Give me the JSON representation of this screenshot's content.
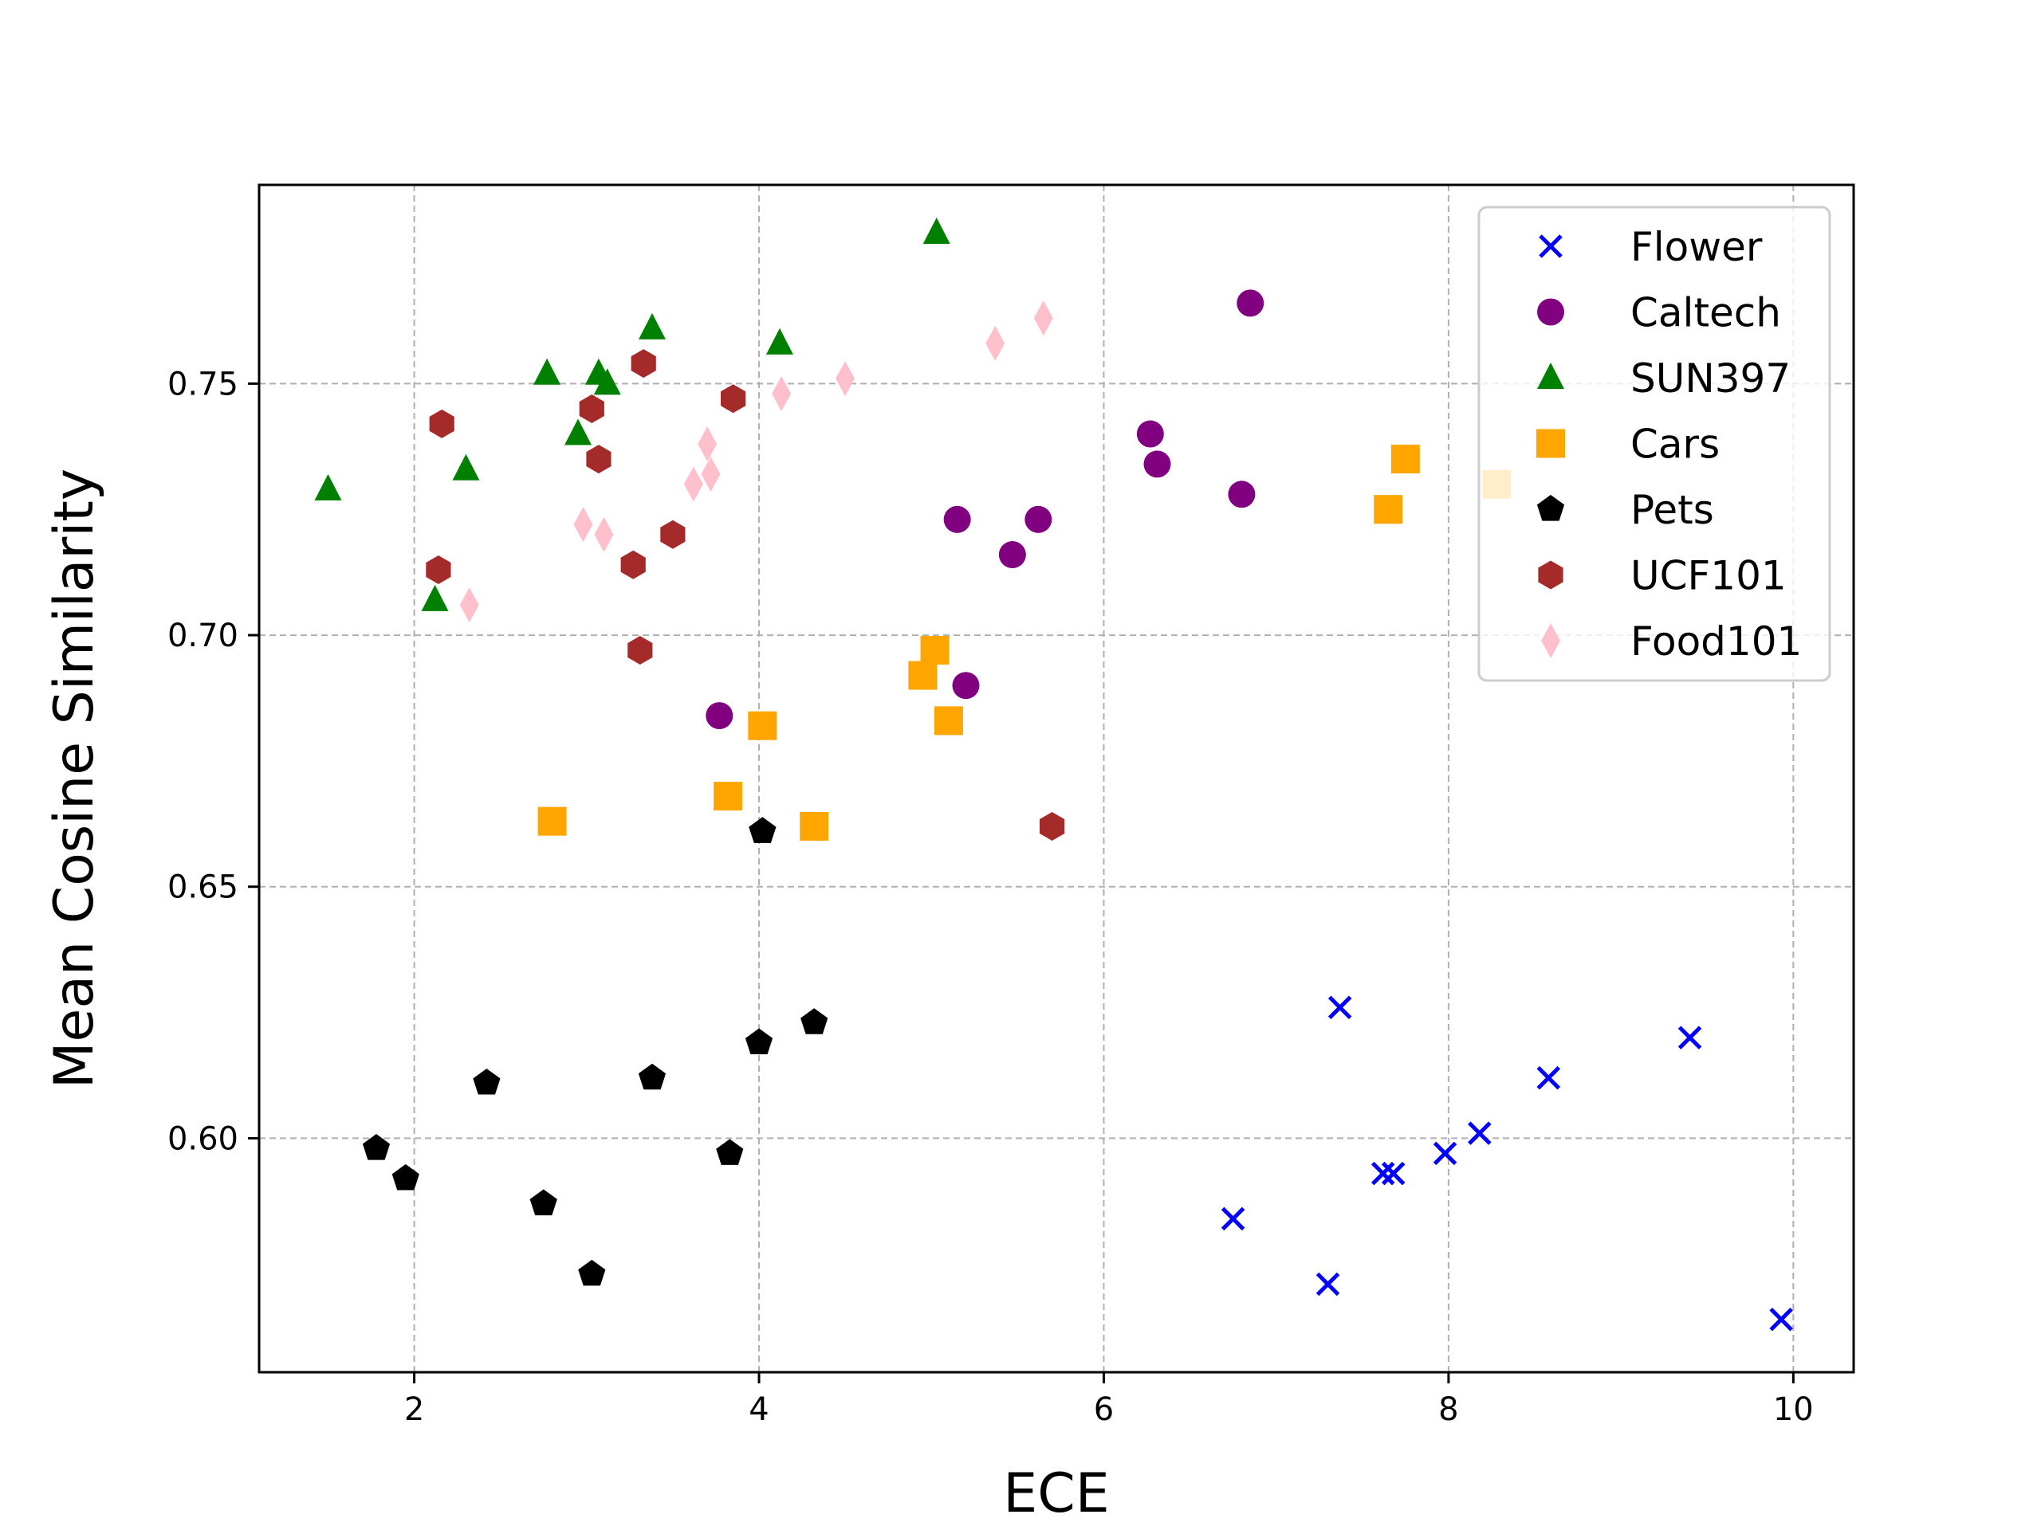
{
  "chart_data": {
    "type": "scatter",
    "title": "",
    "xlabel": "ECE",
    "ylabel": "Mean Cosine Similarity",
    "xlim": [
      1.1,
      10.35
    ],
    "ylim": [
      0.5535,
      0.7895
    ],
    "xticks": [
      2,
      4,
      6,
      8,
      10
    ],
    "xtick_labels": [
      "2",
      "4",
      "6",
      "8",
      "10"
    ],
    "yticks": [
      0.6,
      0.65,
      0.7,
      0.75
    ],
    "ytick_labels": [
      "0.60",
      "0.65",
      "0.70",
      "0.75"
    ],
    "grid": true,
    "legend_position": "top-right",
    "series": [
      {
        "name": "Flower",
        "marker": "x",
        "color": "#0000ff",
        "points": [
          [
            6.75,
            0.584
          ],
          [
            7.3,
            0.571
          ],
          [
            7.37,
            0.626
          ],
          [
            7.62,
            0.593
          ],
          [
            7.68,
            0.593
          ],
          [
            7.98,
            0.597
          ],
          [
            8.18,
            0.601
          ],
          [
            8.58,
            0.612
          ],
          [
            9.4,
            0.62
          ],
          [
            9.93,
            0.564
          ]
        ]
      },
      {
        "name": "Caltech",
        "marker": "circle",
        "color": "#800080",
        "points": [
          [
            6.85,
            0.766
          ],
          [
            6.27,
            0.74
          ],
          [
            6.31,
            0.734
          ],
          [
            6.8,
            0.728
          ],
          [
            5.15,
            0.723
          ],
          [
            5.62,
            0.723
          ],
          [
            5.47,
            0.716
          ],
          [
            5.2,
            0.69
          ],
          [
            3.77,
            0.684
          ]
        ]
      },
      {
        "name": "SUN397",
        "marker": "triangle",
        "color": "#008000",
        "points": [
          [
            5.03,
            0.78
          ],
          [
            3.38,
            0.761
          ],
          [
            4.12,
            0.758
          ],
          [
            2.77,
            0.752
          ],
          [
            3.07,
            0.752
          ],
          [
            3.12,
            0.75
          ],
          [
            2.95,
            0.74
          ],
          [
            2.3,
            0.733
          ],
          [
            1.5,
            0.729
          ],
          [
            2.12,
            0.707
          ]
        ]
      },
      {
        "name": "Cars",
        "marker": "square",
        "color": "#ffa500",
        "points": [
          [
            7.75,
            0.735
          ],
          [
            7.65,
            0.725
          ],
          [
            8.28,
            0.73
          ],
          [
            5.02,
            0.697
          ],
          [
            4.95,
            0.692
          ],
          [
            5.1,
            0.683
          ],
          [
            4.02,
            0.682
          ],
          [
            3.82,
            0.668
          ],
          [
            4.32,
            0.662
          ],
          [
            2.8,
            0.663
          ]
        ]
      },
      {
        "name": "Pets",
        "marker": "pentagon",
        "color": "#000000",
        "points": [
          [
            4.02,
            0.661
          ],
          [
            4.32,
            0.623
          ],
          [
            4.0,
            0.619
          ],
          [
            3.38,
            0.612
          ],
          [
            2.42,
            0.611
          ],
          [
            1.78,
            0.598
          ],
          [
            1.95,
            0.592
          ],
          [
            3.83,
            0.597
          ],
          [
            2.75,
            0.587
          ],
          [
            3.03,
            0.573
          ]
        ]
      },
      {
        "name": "UCF101",
        "marker": "hexagon",
        "color": "#a52a2a",
        "points": [
          [
            3.33,
            0.754
          ],
          [
            3.85,
            0.747
          ],
          [
            3.03,
            0.745
          ],
          [
            2.16,
            0.742
          ],
          [
            3.07,
            0.735
          ],
          [
            3.5,
            0.72
          ],
          [
            3.27,
            0.714
          ],
          [
            2.14,
            0.713
          ],
          [
            3.31,
            0.697
          ],
          [
            5.7,
            0.662
          ]
        ]
      },
      {
        "name": "Food101",
        "marker": "diamond",
        "color": "#ffc0cb",
        "points": [
          [
            5.65,
            0.763
          ],
          [
            5.37,
            0.758
          ],
          [
            4.5,
            0.751
          ],
          [
            4.13,
            0.748
          ],
          [
            3.7,
            0.738
          ],
          [
            3.62,
            0.73
          ],
          [
            3.72,
            0.732
          ],
          [
            2.98,
            0.722
          ],
          [
            3.1,
            0.72
          ],
          [
            2.32,
            0.706
          ]
        ]
      }
    ]
  }
}
